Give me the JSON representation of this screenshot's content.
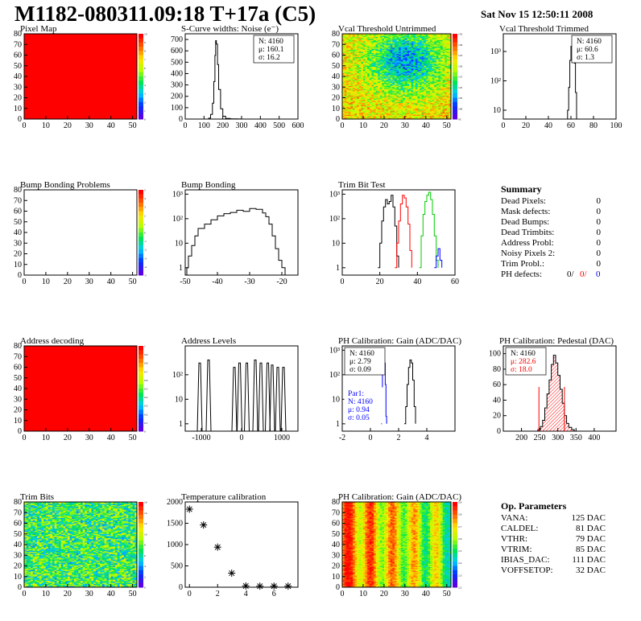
{
  "header": {
    "title": "M1182-080311.09:18 T+17a (C5)",
    "date": "Sat Nov 15 12:50:11 2008"
  },
  "chart_data": [
    {
      "id": "pixel-map",
      "type": "heatmap",
      "title": "Pixel Map",
      "fill": "#ff0000",
      "xlim": [
        0,
        52
      ],
      "ylim": [
        0,
        80
      ],
      "xticks": [
        0,
        10,
        20,
        30,
        40,
        50
      ],
      "yticks": [
        0,
        10,
        20,
        30,
        40,
        50,
        60,
        70,
        80
      ],
      "zscale": [
        "0",
        "1",
        "2",
        "3",
        "4",
        "5",
        "6",
        "7",
        "8",
        "9",
        "10"
      ]
    },
    {
      "id": "scurve-noise",
      "type": "histogram",
      "title": "S-Curve widths: Noise (e⁻)",
      "xlim": [
        0,
        600
      ],
      "ylim": [
        0,
        750
      ],
      "xticks": [
        0,
        100,
        200,
        300,
        400,
        500,
        600
      ],
      "yticks": [
        0,
        100,
        200,
        300,
        400,
        500,
        600,
        700
      ],
      "stats": {
        "n": "N: 4160",
        "mean": "μ: 160.1",
        "sigma": "σ: 16.2"
      },
      "series": [
        {
          "color": "#000000",
          "points": [
            [
              100,
              0
            ],
            [
              125,
              8
            ],
            [
              135,
              40
            ],
            [
              145,
              140
            ],
            [
              152,
              330
            ],
            [
              158,
              560
            ],
            [
              162,
              690
            ],
            [
              166,
              660
            ],
            [
              172,
              480
            ],
            [
              178,
              260
            ],
            [
              188,
              90
            ],
            [
              200,
              25
            ],
            [
              215,
              6
            ],
            [
              240,
              2
            ],
            [
              280,
              1
            ],
            [
              300,
              0
            ]
          ]
        }
      ]
    },
    {
      "id": "vcal-untrimmed",
      "type": "heatmap",
      "title": "Vcal Threshold Untrimmed",
      "xlim": [
        0,
        52
      ],
      "ylim": [
        0,
        80
      ],
      "xticks": [
        0,
        10,
        20,
        30,
        40,
        50
      ],
      "yticks": [
        0,
        10,
        20,
        30,
        40,
        50,
        60,
        70,
        80
      ],
      "zscale": [
        "95",
        "100",
        "105",
        "110",
        "115",
        "120",
        "125",
        "130",
        "135"
      ]
    },
    {
      "id": "vcal-trimmed",
      "type": "histogram",
      "title": "Vcal Threshold Trimmed",
      "xlim": [
        0,
        100
      ],
      "log": true,
      "ylim": [
        5,
        4000
      ],
      "xticks": [
        0,
        20,
        40,
        60,
        80,
        100
      ],
      "yticks": [
        {
          "v": 10,
          "t": "10"
        },
        {
          "v": 100,
          "t": "10²"
        },
        {
          "v": 1000,
          "t": "10³"
        }
      ],
      "stats": {
        "n": "N: 4160",
        "mean": "μ: 60.6",
        "sigma": "σ:  1.3"
      },
      "series": [
        {
          "color": "#000000",
          "points": [
            [
              55,
              5
            ],
            [
              57,
              10
            ],
            [
              58,
              60
            ],
            [
              59,
              500
            ],
            [
              60,
              1500
            ],
            [
              61,
              2200
            ],
            [
              62,
              1400
            ],
            [
              63,
              400
            ],
            [
              64,
              40
            ],
            [
              65,
              5
            ]
          ]
        }
      ]
    },
    {
      "id": "bump-problems",
      "type": "heatmap",
      "title": "Bump Bonding Problems",
      "fill": "none",
      "xlim": [
        0,
        52
      ],
      "ylim": [
        0,
        80
      ],
      "xticks": [
        0,
        10,
        20,
        30,
        40,
        50
      ],
      "yticks": [
        0,
        10,
        20,
        30,
        40,
        50,
        60,
        70,
        80
      ],
      "zscale": [
        "-5",
        "-4",
        "-3",
        "-2",
        "-1",
        "0",
        "1",
        "2",
        "3",
        "4",
        "5"
      ]
    },
    {
      "id": "bump-bonding",
      "type": "histogram",
      "title": "Bump Bonding",
      "xlim": [
        -50,
        -15
      ],
      "log": true,
      "ylim": [
        0.5,
        1500
      ],
      "xticks": [
        -50,
        -40,
        -30,
        -20
      ],
      "yticks": [
        {
          "v": 1,
          "t": "1"
        },
        {
          "v": 10,
          "t": "10"
        },
        {
          "v": 100,
          "t": "10²"
        },
        {
          "v": 1000,
          "t": "10³"
        }
      ],
      "series": [
        {
          "color": "#000000",
          "points": [
            [
              -50,
              0.5
            ],
            [
              -49.5,
              1
            ],
            [
              -49,
              3
            ],
            [
              -48,
              8
            ],
            [
              -47,
              20
            ],
            [
              -46,
              40
            ],
            [
              -44,
              60
            ],
            [
              -42,
              90
            ],
            [
              -40,
              130
            ],
            [
              -38,
              160
            ],
            [
              -36,
              180
            ],
            [
              -34,
              220
            ],
            [
              -32,
              200
            ],
            [
              -30,
              260
            ],
            [
              -28,
              240
            ],
            [
              -26,
              170
            ],
            [
              -25,
              120
            ],
            [
              -24,
              60
            ],
            [
              -23,
              20
            ],
            [
              -22,
              6
            ],
            [
              -21,
              2
            ],
            [
              -20,
              1
            ],
            [
              -19,
              0.5
            ]
          ]
        }
      ]
    },
    {
      "id": "trim-bit-test",
      "type": "histogram",
      "title": "Trim Bit Test",
      "xlim": [
        0,
        60
      ],
      "log": true,
      "ylim": [
        0.5,
        1500
      ],
      "xticks": [
        0,
        20,
        40,
        60
      ],
      "yticks": [
        {
          "v": 1,
          "t": "1"
        },
        {
          "v": 10,
          "t": "10"
        },
        {
          "v": 100,
          "t": "10²"
        },
        {
          "v": 1000,
          "t": "10³"
        }
      ],
      "series": [
        {
          "color": "#000000",
          "points": [
            [
              19,
              1
            ],
            [
              20,
              10
            ],
            [
              21,
              80
            ],
            [
              22,
              300
            ],
            [
              23,
              600
            ],
            [
              24,
              400
            ],
            [
              25,
              500
            ],
            [
              26,
              900
            ],
            [
              27,
              300
            ],
            [
              28,
              50
            ],
            [
              29,
              3
            ],
            [
              30,
              1
            ]
          ]
        },
        {
          "color": "#ff0000",
          "points": [
            [
              28,
              1
            ],
            [
              29,
              10
            ],
            [
              30,
              80
            ],
            [
              31,
              400
            ],
            [
              32,
              900
            ],
            [
              33,
              700
            ],
            [
              34,
              300
            ],
            [
              35,
              60
            ],
            [
              36,
              5
            ],
            [
              37,
              1
            ]
          ]
        },
        {
          "color": "#00cc00",
          "points": [
            [
              41,
              1
            ],
            [
              42,
              20
            ],
            [
              43,
              150
            ],
            [
              44,
              500
            ],
            [
              45,
              900
            ],
            [
              46,
              1200
            ],
            [
              47,
              600
            ],
            [
              48,
              150
            ],
            [
              49,
              20
            ],
            [
              50,
              2
            ],
            [
              51,
              1
            ]
          ]
        },
        {
          "color": "#0000ff",
          "points": [
            [
              49,
              1
            ],
            [
              50,
              3
            ],
            [
              51,
              6
            ],
            [
              52,
              2
            ],
            [
              53,
              1
            ]
          ]
        }
      ]
    },
    {
      "id": "summary",
      "type": "table",
      "title": "Summary",
      "rows": [
        {
          "label": "Dead Pixels:",
          "value": "0"
        },
        {
          "label": "Mask defects:",
          "value": "0"
        },
        {
          "label": "Dead Bumps:",
          "value": "0"
        },
        {
          "label": "Dead Trimbits:",
          "value": "0"
        },
        {
          "label": "Address Probl:",
          "value": "0"
        },
        {
          "label": "Noisy Pixels 2:",
          "value": "0"
        },
        {
          "label": "Trim Probl.:",
          "value": "0"
        }
      ],
      "ph_defects": {
        "label": "PH defects:",
        "v1": "0/",
        "v2": "0/",
        "v3": "0",
        "c2": "#ff0000",
        "c3": "#0000ff"
      }
    },
    {
      "id": "address-decoding",
      "type": "heatmap",
      "title": "Address decoding",
      "fill": "#ff0000",
      "xlim": [
        0,
        52
      ],
      "ylim": [
        0,
        80
      ],
      "xticks": [
        0,
        10,
        20,
        30,
        40,
        50
      ],
      "yticks": [
        0,
        10,
        20,
        30,
        40,
        50,
        60,
        70,
        80
      ],
      "zscale": [
        "0",
        "0.1",
        "0.2",
        "0.3",
        "0.4",
        "0.5",
        "0.6",
        "0.7",
        "0.8",
        "0.9",
        "1"
      ]
    },
    {
      "id": "address-levels",
      "type": "histogram",
      "title": "Address Levels",
      "xlim": [
        -1400,
        1400
      ],
      "log": true,
      "ylim": [
        0.5,
        1500
      ],
      "xticks": [
        -1000,
        0,
        1000
      ],
      "yticks": [
        {
          "v": 1,
          "t": "1"
        },
        {
          "v": 10,
          "t": "10"
        },
        {
          "v": 100,
          "t": "10²"
        }
      ],
      "spikes": [
        -1040,
        -820,
        -180,
        -50,
        130,
        340,
        480,
        650,
        760,
        900,
        1040
      ],
      "spike_heights": [
        300,
        400,
        200,
        300,
        300,
        400,
        300,
        300,
        250,
        200,
        200
      ]
    },
    {
      "id": "ph-gain",
      "type": "histogram",
      "title": "PH Calibration: Gain (ADC/DAC)",
      "xlim": [
        -2,
        6
      ],
      "log": true,
      "ylim": [
        0.5,
        1500
      ],
      "xticks": [
        -2,
        0,
        2,
        4
      ],
      "yticks": [
        {
          "v": 1,
          "t": "1"
        },
        {
          "v": 10,
          "t": "10"
        },
        {
          "v": 100,
          "t": "10²"
        },
        {
          "v": 1000,
          "t": "10³"
        }
      ],
      "stats": {
        "n": "N: 4160",
        "mean": "μ: 2.79",
        "sigma": "σ: 0.09"
      },
      "par1": {
        "label": "Par1:",
        "n": "N: 4160",
        "mean": "μ: 0.94",
        "sigma": "σ: 0.05"
      },
      "series": [
        {
          "color": "#000000",
          "points": [
            [
              2.4,
              1
            ],
            [
              2.5,
              5
            ],
            [
              2.6,
              40
            ],
            [
              2.7,
              200
            ],
            [
              2.8,
              400
            ],
            [
              2.9,
              300
            ],
            [
              3.0,
              60
            ],
            [
              3.1,
              5
            ],
            [
              3.2,
              1
            ]
          ]
        },
        {
          "color": "#0000ff",
          "points": [
            [
              0.75,
              1
            ],
            [
              0.8,
              20
            ],
            [
              0.85,
              200
            ],
            [
              0.9,
              600
            ],
            [
              0.95,
              700
            ],
            [
              1.0,
              300
            ],
            [
              1.05,
              40
            ],
            [
              1.1,
              2
            ],
            [
              1.15,
              1
            ]
          ]
        }
      ]
    },
    {
      "id": "ph-pedestal",
      "type": "histogram",
      "title": "PH Calibration: Pedestal (DAC)",
      "xlim": [
        150,
        460
      ],
      "ylim": [
        0,
        110
      ],
      "xticks": [
        200,
        250,
        300,
        350,
        400
      ],
      "yticks": [
        0,
        20,
        40,
        60,
        80,
        100
      ],
      "stats": {
        "n": "N: 4160",
        "mean": "μ: 282.6",
        "sigma": "σ: 18.0"
      },
      "vlines": [
        248,
        318
      ],
      "series": [
        {
          "color": "#000000",
          "points": [
            [
              235,
              0
            ],
            [
              245,
              2
            ],
            [
              252,
              6
            ],
            [
              258,
              14
            ],
            [
              264,
              30
            ],
            [
              270,
              48
            ],
            [
              276,
              66
            ],
            [
              282,
              86
            ],
            [
              288,
              98
            ],
            [
              294,
              88
            ],
            [
              300,
              72
            ],
            [
              306,
              54
            ],
            [
              312,
              36
            ],
            [
              318,
              20
            ],
            [
              324,
              10
            ],
            [
              330,
              5
            ],
            [
              338,
              2
            ],
            [
              345,
              0
            ]
          ]
        }
      ]
    },
    {
      "id": "trim-bits",
      "type": "heatmap",
      "title": "Trim Bits",
      "xlim": [
        0,
        52
      ],
      "ylim": [
        0,
        80
      ],
      "xticks": [
        0,
        10,
        20,
        30,
        40,
        50
      ],
      "yticks": [
        0,
        10,
        20,
        30,
        40,
        50,
        60,
        70,
        80
      ],
      "zscale": [
        "0",
        "2",
        "4",
        "6",
        "8",
        "10",
        "12",
        "14",
        "16"
      ]
    },
    {
      "id": "temperature-calibration",
      "type": "scatter",
      "title": "Temperature calibration",
      "xlim": [
        -0.3,
        7.7
      ],
      "ylim": [
        0,
        2000
      ],
      "xticks": [
        0,
        2,
        4,
        6
      ],
      "yticks": [
        0,
        500,
        1000,
        1500,
        2000
      ],
      "x": [
        0,
        1,
        2,
        3,
        4,
        5,
        6,
        7
      ],
      "y": [
        1830,
        1460,
        940,
        330,
        30,
        25,
        25,
        25
      ]
    },
    {
      "id": "ph-gain-map",
      "type": "heatmap",
      "title": "PH Calibration: Gain (ADC/DAC)",
      "xlim": [
        0,
        52
      ],
      "ylim": [
        0,
        80
      ],
      "xticks": [
        0,
        10,
        20,
        30,
        40,
        50
      ],
      "yticks": [
        0,
        10,
        20,
        30,
        40,
        50,
        60,
        70,
        80
      ],
      "zscale": [
        "2.2",
        "2.3",
        "2.4",
        "2.5",
        "2.6",
        "2.7",
        "2.8",
        "2.9"
      ]
    },
    {
      "id": "op-parameters",
      "type": "table",
      "title": "Op. Parameters",
      "rows": [
        {
          "label": "VANA:",
          "value": "125 DAC"
        },
        {
          "label": "CALDEL:",
          "value": "81 DAC"
        },
        {
          "label": "VTHR:",
          "value": "79 DAC"
        },
        {
          "label": "VTRIM:",
          "value": "85 DAC"
        },
        {
          "label": "IBIAS_DAC:",
          "value": "111 DAC"
        },
        {
          "label": "VOFFSETOP:",
          "value": "32 DAC"
        }
      ]
    }
  ]
}
